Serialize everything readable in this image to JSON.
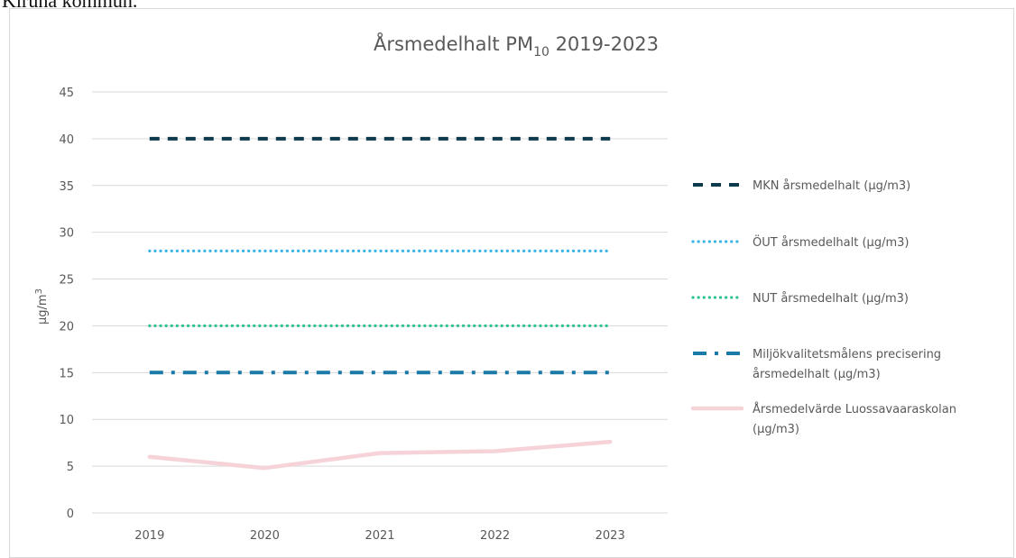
{
  "page": {
    "cut_text": "Kiruna kommun."
  },
  "chart_data": {
    "type": "line",
    "title_prefix": "Årsmedelhalt  PM",
    "title_subscript": "10",
    "title_suffix": " 2019-2023",
    "ylabel_base": "µg/m",
    "ylabel_sup": "3",
    "xlabel": "",
    "x": [
      "2019",
      "2020",
      "2021",
      "2022",
      "2023"
    ],
    "y_ticks": [
      "0",
      "5",
      "10",
      "15",
      "20",
      "25",
      "30",
      "35",
      "40",
      "45"
    ],
    "ylim": [
      0,
      45
    ],
    "grid": true,
    "legend_position": "right",
    "series": [
      {
        "name": "MKN årsmedelhalt (µg/m3)",
        "legend_lines": [
          "MKN årsmedelhalt (µg/m3)"
        ],
        "values": [
          40,
          40,
          40,
          40,
          40
        ],
        "color": "#0d3a4d",
        "style": "dash"
      },
      {
        "name": "ÖUT årsmedelhalt (µg/m3)",
        "legend_lines": [
          "ÖUT årsmedelhalt (µg/m3)"
        ],
        "values": [
          28,
          28,
          28,
          28,
          28
        ],
        "color": "#3db5e6",
        "style": "dot"
      },
      {
        "name": "NUT årsmedelhalt (µg/m3)",
        "legend_lines": [
          "NUT årsmedelhalt (µg/m3)"
        ],
        "values": [
          20,
          20,
          20,
          20,
          20
        ],
        "color": "#2ec48d",
        "style": "dot"
      },
      {
        "name": "Miljökvalitetsmålens precisering årsmedelhalt (µg/m3)",
        "legend_lines": [
          "Miljökvalitetsmålens precisering",
          "årsmedelhalt (µg/m3)"
        ],
        "values": [
          15,
          15,
          15,
          15,
          15
        ],
        "color": "#1b7aa8",
        "style": "dashdot"
      },
      {
        "name": "Årsmedelvärde Luossavaaraskolan (µg/m3)",
        "legend_lines": [
          "Årsmedelvärde Luossavaaraskolan",
          "(µg/m3)"
        ],
        "values": [
          6.0,
          4.8,
          6.4,
          6.6,
          7.6
        ],
        "color": "#f6d3d8",
        "style": "solid"
      }
    ]
  }
}
